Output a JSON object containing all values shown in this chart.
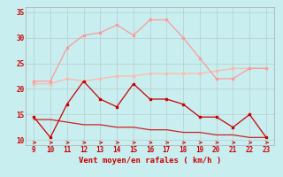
{
  "x": [
    9,
    10,
    11,
    12,
    13,
    14,
    15,
    16,
    17,
    18,
    19,
    20,
    21,
    22,
    23
  ],
  "line1_y": [
    21.5,
    21.5,
    28,
    30.5,
    31,
    32.5,
    30.5,
    33.5,
    33.5,
    30,
    26,
    22,
    22,
    24,
    24
  ],
  "line2_y": [
    21,
    21,
    22,
    21.5,
    22,
    22.5,
    22.5,
    23,
    23,
    23,
    23,
    23.5,
    24,
    24,
    24
  ],
  "line3_y": [
    14.5,
    10.5,
    17,
    21.5,
    18,
    16.5,
    21,
    18,
    18,
    17,
    14.5,
    14.5,
    12.5,
    15,
    10.5
  ],
  "line4_y": [
    14,
    14,
    13.5,
    13,
    13,
    12.5,
    12.5,
    12,
    12,
    11.5,
    11.5,
    11,
    11,
    10.5,
    10.5
  ],
  "line1_color": "#FF9999",
  "line2_color": "#FFB8A8",
  "line3_color": "#CC0000",
  "line4_color": "#CC2222",
  "bg_color": "#C8EEF0",
  "grid_color": "#BBCCCC",
  "xlabel": "Vent moyen/en rafales ( km/h )",
  "ylim": [
    9,
    36
  ],
  "yticks": [
    10,
    15,
    20,
    25,
    30,
    35
  ],
  "xlim": [
    8.5,
    23.5
  ]
}
